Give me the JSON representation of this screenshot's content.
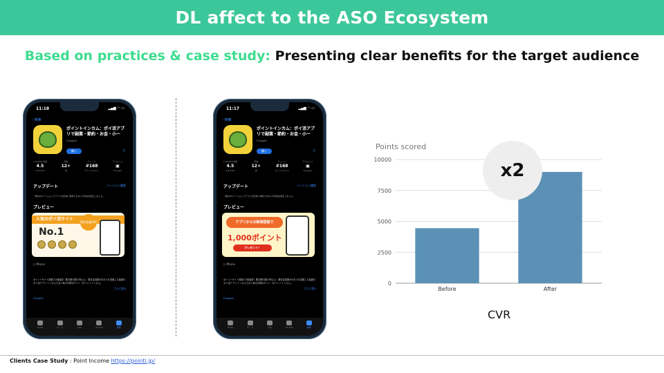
{
  "header": {
    "title": "DL  affect to the ASO Ecosystem"
  },
  "subtitle": {
    "accent": "Based on practices & case study:",
    "rest": "Presenting clear benefits for the target audience"
  },
  "phone_left": {
    "time": "11:18",
    "back": "検索",
    "app_title": "ポイントインカム：ポイ活アプリで副業・節約・お金・小ー",
    "get": "開く",
    "stats": [
      {
        "k": "2,820件の評価",
        "v": "4.5",
        "s": "★★★★★"
      },
      {
        "k": "年齢",
        "v": "12+",
        "s": "歳"
      },
      {
        "k": "チャート",
        "v": "#168",
        "s": "ライフスタイル"
      },
      {
        "k": "デベロッパ",
        "v": "▣",
        "s": "Fivegate"
      }
    ],
    "update": "アップデート",
    "version_link": "バージョン履歴",
    "update_note": "一部のOSバージョンでアプリが正常に利用できない不具合を修正しました。",
    "preview": "プレビュー",
    "preview_ribbon": "人気のポイ活サイト",
    "preview_big": "No.1",
    "preview_badge": "累計会員400万人",
    "device": "iPhone",
    "desc": "ポイントサイト調査で2冠達成！累計発行額10年以上・累計会員数400万人を突破した話題のポイ活アプリ インカムで大人気のお得なサイト「ポイントインカム」",
    "more": "さらに表示",
    "developer": "Fivegate",
    "tabs": [
      "Today",
      "ゲーム",
      "App",
      "Arcade",
      "検索"
    ]
  },
  "phone_right": {
    "time": "11:17",
    "back": "検索",
    "app_title": "ポイントインカム：ポイ活アプリで副業・節約・お金・小ー",
    "get": "開く",
    "stats": [
      {
        "k": "2,820件の評価",
        "v": "4.5",
        "s": "★★★★★"
      },
      {
        "k": "年齢",
        "v": "12+",
        "s": "歳"
      },
      {
        "k": "チャート",
        "v": "#168",
        "s": "ライフスタイル"
      },
      {
        "k": "デベロッパ",
        "v": "▣",
        "s": "Fivegate"
      }
    ],
    "update": "アップデート",
    "version_link": "バージョン履歴",
    "update_note": "一部のOSバージョンでアプリが正常に利用できない不具合を修正しました。",
    "preview": "プレビュー",
    "preview_head": "アプリからの新規登録で",
    "preview_big": "1,000ポイント",
    "preview_btn": "プレゼント！",
    "device": "iPhone",
    "desc": "ポイントサイト調査で2冠達成！累計発行額10年以上・累計会員数400万人を突破した話題のポイ活アプリ インカムで大人気のお得なサイト「ポイントインカム」",
    "more": "さらに表示",
    "developer": "Fivegate",
    "tabs": [
      "Today",
      "ゲーム",
      "App",
      "Arcade",
      "検索"
    ]
  },
  "chart_data": {
    "type": "bar",
    "title": "Points scored",
    "categories": [
      "Before",
      "After"
    ],
    "values": [
      4450,
      9000
    ],
    "ylim": [
      0,
      10000
    ],
    "yticks": [
      0,
      2500,
      5000,
      7500,
      10000
    ],
    "grid": true,
    "bar_color": "#5b91b5"
  },
  "badge": "x2",
  "caption": "CVR",
  "footer": {
    "label": "Clients Case Study",
    "client": "  : Point Income ",
    "link": "https://pointi.jp/"
  }
}
